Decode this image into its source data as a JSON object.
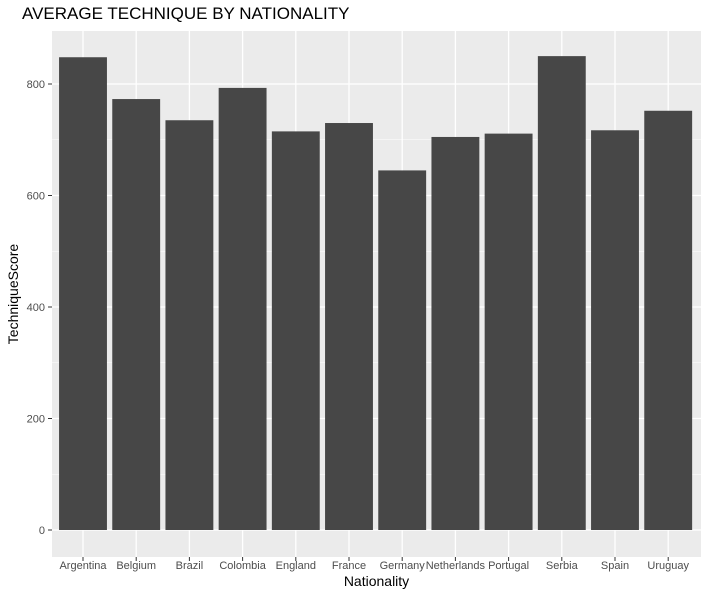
{
  "chart_data": {
    "type": "bar",
    "title": "AVERAGE TECHNIQUE BY NATIONALITY",
    "xlabel": "Nationality",
    "ylabel": "TechniqueScore",
    "categories": [
      "Argentina",
      "Belgium",
      "Brazil",
      "Colombia",
      "England",
      "France",
      "Germany",
      "Netherlands",
      "Portugal",
      "Serbia",
      "Spain",
      "Uruguay"
    ],
    "values": [
      848,
      773,
      735,
      793,
      715,
      730,
      645,
      705,
      711,
      850,
      717,
      752
    ],
    "ylim": [
      0,
      880
    ],
    "yticks": [
      0,
      200,
      400,
      600,
      800
    ],
    "grid": true,
    "legend": "none",
    "colors": {
      "panel": "#ebebeb",
      "grid": "#ffffff",
      "bar": "#474747",
      "tick_text": "#4d4d4d",
      "tick_mark": "#333333"
    }
  }
}
